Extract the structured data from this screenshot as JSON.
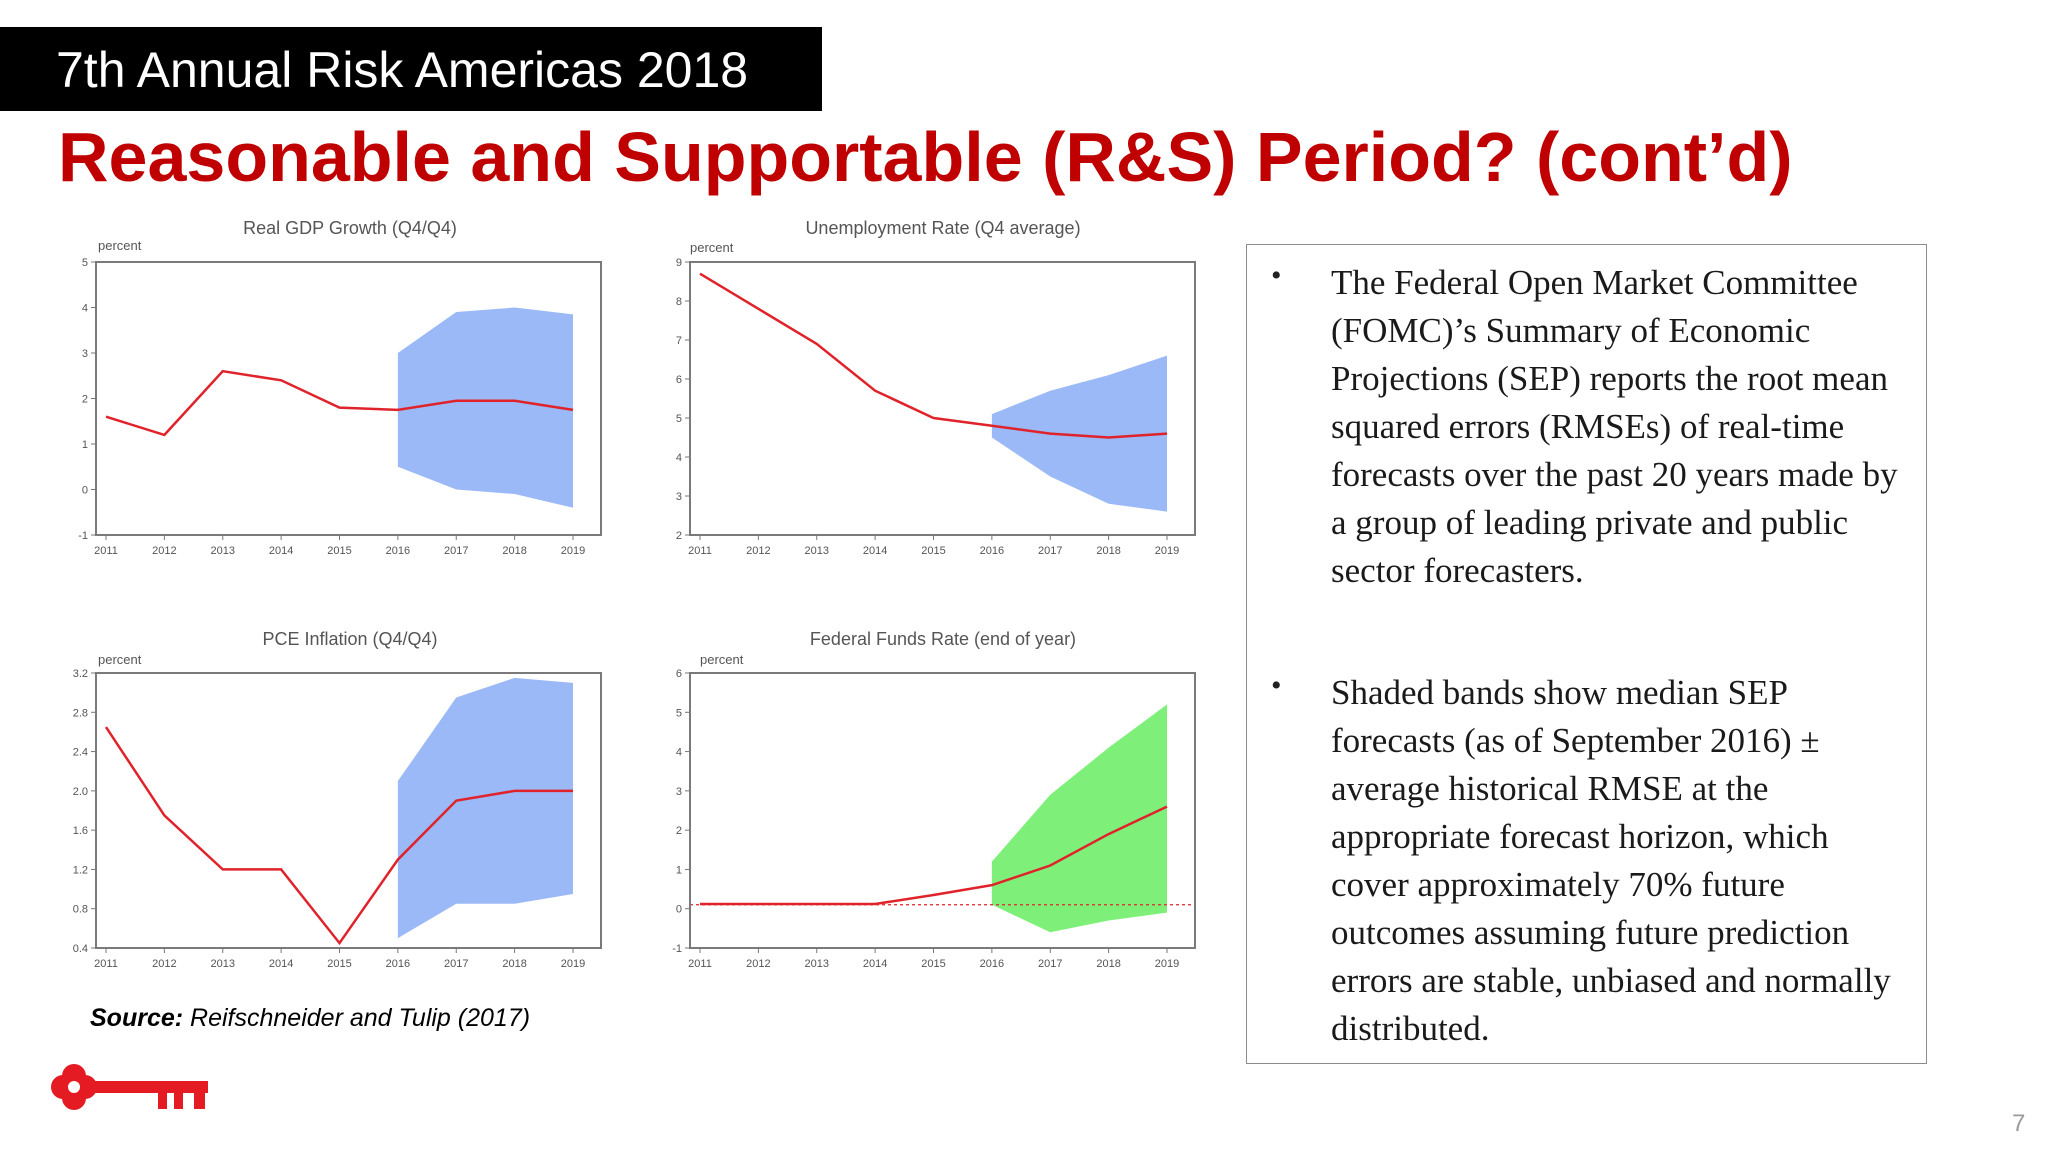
{
  "header": {
    "banner": "7th Annual Risk Americas 2018",
    "title": "Reasonable and Supportable (R&S) Period? (cont’d)"
  },
  "colors": {
    "title_red": "#c00000",
    "line_red": "#e0232b",
    "band_blue": "#9bb9f7",
    "band_green": "#7ef07a"
  },
  "chart_data": [
    {
      "type": "line",
      "title": "Real GDP Growth (Q4/Q4)",
      "ylabel": "percent",
      "x": [
        "2011",
        "2012",
        "2013",
        "2014",
        "2015",
        "2016",
        "2017",
        "2018",
        "2019"
      ],
      "ylim": [
        -1,
        5
      ],
      "yticks": [
        "5",
        "4",
        "3",
        "2",
        "1",
        "0",
        "-1"
      ],
      "series": [
        {
          "values": [
            1.6,
            1.2,
            2.6,
            2.4,
            1.8,
            1.75,
            1.95,
            1.95,
            1.75
          ]
        }
      ],
      "band": {
        "x": [
          "2016",
          "2017",
          "2018",
          "2019"
        ],
        "lower": [
          0.5,
          0.0,
          -0.1,
          -0.4
        ],
        "upper": [
          3.0,
          3.9,
          4.0,
          3.85
        ],
        "color": "blue"
      }
    },
    {
      "type": "line",
      "title": "Unemployment Rate (Q4 average)",
      "ylabel": "percent",
      "x": [
        "2011",
        "2012",
        "2013",
        "2014",
        "2015",
        "2016",
        "2017",
        "2018",
        "2019"
      ],
      "ylim": [
        2,
        9
      ],
      "yticks": [
        "9",
        "8",
        "7",
        "6",
        "5",
        "4",
        "3",
        "2"
      ],
      "series": [
        {
          "values": [
            8.7,
            7.8,
            6.9,
            5.7,
            5.0,
            4.8,
            4.6,
            4.5,
            4.6
          ]
        }
      ],
      "band": {
        "x": [
          "2016",
          "2017",
          "2018",
          "2019"
        ],
        "lower": [
          4.5,
          3.5,
          2.8,
          2.6
        ],
        "upper": [
          5.1,
          5.7,
          6.1,
          6.6
        ],
        "color": "blue"
      }
    },
    {
      "type": "line",
      "title": "PCE Inflation (Q4/Q4)",
      "ylabel": "percent",
      "x": [
        "2011",
        "2012",
        "2013",
        "2014",
        "2015",
        "2016",
        "2017",
        "2018",
        "2019"
      ],
      "ylim": [
        0.4,
        3.2
      ],
      "yticks": [
        "3.2",
        "2.8",
        "2.4",
        "2.0",
        "1.6",
        "1.2",
        "0.8",
        "0.4"
      ],
      "series": [
        {
          "values": [
            2.65,
            1.75,
            1.2,
            1.2,
            0.45,
            1.3,
            1.9,
            2.0,
            2.0
          ]
        }
      ],
      "band": {
        "x": [
          "2016",
          "2017",
          "2018",
          "2019"
        ],
        "lower": [
          0.5,
          0.85,
          0.85,
          0.95
        ],
        "upper": [
          2.1,
          2.95,
          3.15,
          3.1
        ],
        "color": "blue"
      }
    },
    {
      "type": "line",
      "title": "Federal Funds Rate (end of year)",
      "ylabel": "percent",
      "x": [
        "2011",
        "2012",
        "2013",
        "2014",
        "2015",
        "2016",
        "2017",
        "2018",
        "2019"
      ],
      "ylim": [
        -1,
        6
      ],
      "yticks": [
        "6",
        "5",
        "4",
        "3",
        "2",
        "1",
        "0",
        "-1"
      ],
      "series": [
        {
          "values": [
            0.12,
            0.12,
            0.12,
            0.12,
            0.35,
            0.6,
            1.1,
            1.9,
            2.6
          ]
        }
      ],
      "zero_line": 0.1,
      "band": {
        "x": [
          "2016",
          "2017",
          "2018",
          "2019"
        ],
        "lower": [
          0.1,
          -0.6,
          -0.3,
          -0.1
        ],
        "upper": [
          1.2,
          2.9,
          4.1,
          5.2
        ],
        "color": "green"
      }
    }
  ],
  "bullets": [
    "The Federal Open Market Committee (FOMC)’s Summary of Economic Projections (SEP) reports the root mean squared errors (RMSEs) of real-time forecasts over the past 20 years made by a group of leading private and public sector forecasters.",
    "Shaded bands show median SEP forecasts (as of September 2016) ± average historical RMSE at the appropriate forecast horizon, which cover approximately 70% future outcomes assuming future prediction errors are stable, unbiased and normally distributed."
  ],
  "bullet_symbol": "•",
  "source": {
    "label": "Source:",
    "text": " Reifschneider and Tulip (2017)"
  },
  "page_number": "7",
  "logo_icon": "key-logo-icon"
}
